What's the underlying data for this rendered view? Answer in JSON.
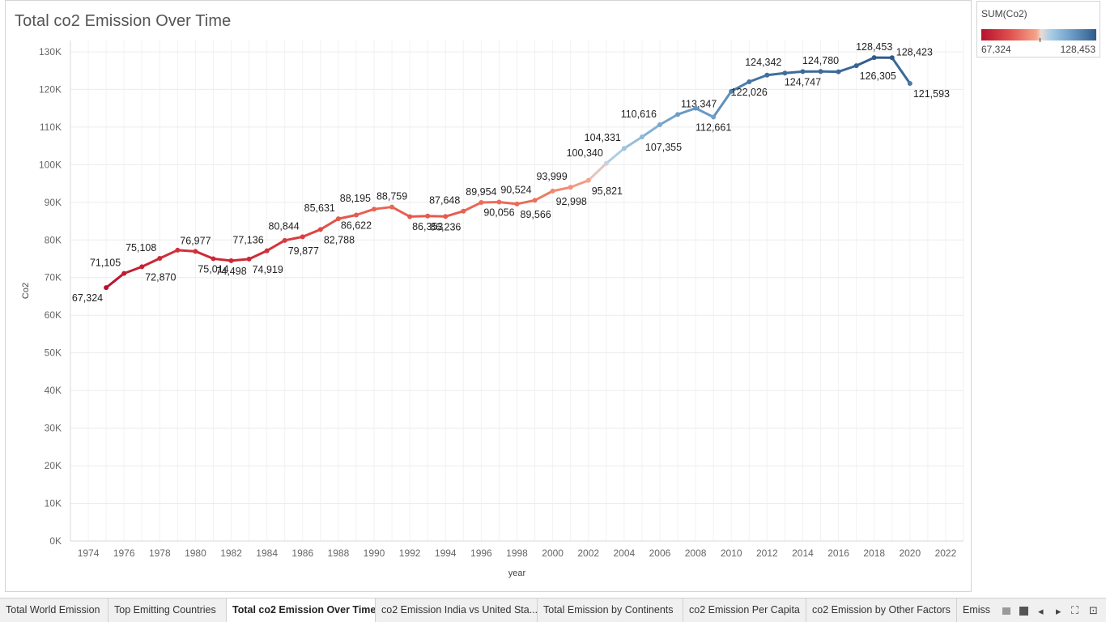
{
  "chart_data": {
    "type": "line",
    "title": "Total co2 Emission Over Time",
    "xlabel": "year",
    "ylabel": "Co2",
    "xlim": [
      1973,
      2023
    ],
    "ylim": [
      0,
      133000
    ],
    "x_ticks": [
      1974,
      1976,
      1978,
      1980,
      1982,
      1984,
      1986,
      1988,
      1990,
      1992,
      1994,
      1996,
      1998,
      2000,
      2002,
      2004,
      2006,
      2008,
      2010,
      2012,
      2014,
      2016,
      2018,
      2020,
      2022
    ],
    "y_ticks": [
      {
        "value": 0,
        "label": "0K"
      },
      {
        "value": 10000,
        "label": "10K"
      },
      {
        "value": 20000,
        "label": "20K"
      },
      {
        "value": 30000,
        "label": "30K"
      },
      {
        "value": 40000,
        "label": "40K"
      },
      {
        "value": 50000,
        "label": "50K"
      },
      {
        "value": 60000,
        "label": "60K"
      },
      {
        "value": 70000,
        "label": "70K"
      },
      {
        "value": 80000,
        "label": "80K"
      },
      {
        "value": 90000,
        "label": "90K"
      },
      {
        "value": 100000,
        "label": "100K"
      },
      {
        "value": 110000,
        "label": "110K"
      },
      {
        "value": 120000,
        "label": "120K"
      },
      {
        "value": 130000,
        "label": "130K"
      }
    ],
    "grid": true,
    "color_scale": {
      "min_color": "#b6102e",
      "mid_color": "#e9dcd6",
      "max_color": "#2f5a8a"
    },
    "points": [
      {
        "x": 1975,
        "y": 67324,
        "label": "67,324",
        "pos": "below-left"
      },
      {
        "x": 1976,
        "y": 71105,
        "label": "71,105",
        "pos": "above-left"
      },
      {
        "x": 1977,
        "y": 72870,
        "label": "72,870",
        "pos": "below-right"
      },
      {
        "x": 1978,
        "y": 75108,
        "label": "75,108",
        "pos": "above-left"
      },
      {
        "x": 1979,
        "y": 77300,
        "label": "",
        "pos": "none"
      },
      {
        "x": 1980,
        "y": 76977,
        "label": "76,977",
        "pos": "above"
      },
      {
        "x": 1981,
        "y": 75014,
        "label": "75,014",
        "pos": "below"
      },
      {
        "x": 1982,
        "y": 74498,
        "label": "74,498",
        "pos": "below"
      },
      {
        "x": 1983,
        "y": 74919,
        "label": "74,919",
        "pos": "below-right"
      },
      {
        "x": 1984,
        "y": 77136,
        "label": "77,136",
        "pos": "above-left"
      },
      {
        "x": 1985,
        "y": 79877,
        "label": "79,877",
        "pos": "below-right"
      },
      {
        "x": 1986,
        "y": 80844,
        "label": "80,844",
        "pos": "above-left"
      },
      {
        "x": 1987,
        "y": 82788,
        "label": "82,788",
        "pos": "below-right"
      },
      {
        "x": 1988,
        "y": 85631,
        "label": "85,631",
        "pos": "above-left"
      },
      {
        "x": 1989,
        "y": 86622,
        "label": "86,622",
        "pos": "below"
      },
      {
        "x": 1990,
        "y": 88195,
        "label": "88,195",
        "pos": "above-left"
      },
      {
        "x": 1991,
        "y": 88759,
        "label": "88,759",
        "pos": "above"
      },
      {
        "x": 1992,
        "y": 86200,
        "label": "",
        "pos": "none"
      },
      {
        "x": 1993,
        "y": 86353,
        "label": "86,353",
        "pos": "below"
      },
      {
        "x": 1994,
        "y": 86236,
        "label": "86,236",
        "pos": "below"
      },
      {
        "x": 1995,
        "y": 87648,
        "label": "87,648",
        "pos": "above-left"
      },
      {
        "x": 1996,
        "y": 89954,
        "label": "89,954",
        "pos": "above"
      },
      {
        "x": 1997,
        "y": 90056,
        "label": "90,056",
        "pos": "below"
      },
      {
        "x": 1998,
        "y": 89566,
        "label": "89,566",
        "pos": "below-right"
      },
      {
        "x": 1999,
        "y": 90524,
        "label": "90,524",
        "pos": "above-left"
      },
      {
        "x": 2000,
        "y": 92998,
        "label": "92,998",
        "pos": "below-right"
      },
      {
        "x": 2001,
        "y": 93999,
        "label": "93,999",
        "pos": "above-left"
      },
      {
        "x": 2002,
        "y": 95821,
        "label": "95,821",
        "pos": "below-right"
      },
      {
        "x": 2003,
        "y": 100340,
        "label": "100,340",
        "pos": "above-left"
      },
      {
        "x": 2004,
        "y": 104331,
        "label": "104,331",
        "pos": "above-left"
      },
      {
        "x": 2005,
        "y": 107355,
        "label": "107,355",
        "pos": "below-right"
      },
      {
        "x": 2006,
        "y": 110616,
        "label": "110,616",
        "pos": "above-left"
      },
      {
        "x": 2007,
        "y": 113347,
        "label": "113,347",
        "pos": "above-right"
      },
      {
        "x": 2008,
        "y": 115000,
        "label": "",
        "pos": "none"
      },
      {
        "x": 2009,
        "y": 112661,
        "label": "112,661",
        "pos": "below"
      },
      {
        "x": 2010,
        "y": 119500,
        "label": "",
        "pos": "none"
      },
      {
        "x": 2011,
        "y": 122026,
        "label": "122,026",
        "pos": "below"
      },
      {
        "x": 2012,
        "y": 123800,
        "label": "",
        "pos": "none"
      },
      {
        "x": 2013,
        "y": 124342,
        "label": "124,342",
        "pos": "above-left"
      },
      {
        "x": 2014,
        "y": 124747,
        "label": "124,747",
        "pos": "below"
      },
      {
        "x": 2015,
        "y": 124780,
        "label": "124,780",
        "pos": "above"
      },
      {
        "x": 2016,
        "y": 124700,
        "label": "",
        "pos": "none"
      },
      {
        "x": 2017,
        "y": 126305,
        "label": "126,305",
        "pos": "below-right"
      },
      {
        "x": 2018,
        "y": 128453,
        "label": "128,453",
        "pos": "above"
      },
      {
        "x": 2019,
        "y": 128423,
        "label": "128,423",
        "pos": "right"
      },
      {
        "x": 2020,
        "y": 121593,
        "label": "121,593",
        "pos": "below-right"
      }
    ]
  },
  "legend": {
    "title": "SUM(Co2)",
    "min_label": "67,324",
    "max_label": "128,453"
  },
  "tabs": [
    {
      "label": "Total World Emission",
      "active": false
    },
    {
      "label": "Top Emitting Countries",
      "active": false
    },
    {
      "label": "Total co2 Emission Over Time",
      "active": true
    },
    {
      "label": "co2 Emission India vs United Sta...",
      "active": false
    },
    {
      "label": "Total Emission by Continents",
      "active": false
    },
    {
      "label": "co2 Emission Per Capita",
      "active": false
    },
    {
      "label": "co2 Emission by Other Factors",
      "active": false
    },
    {
      "label": "Emiss",
      "active": false
    }
  ],
  "tab_nav": {
    "prev_glyph": "◂",
    "next_glyph": "▸",
    "fullscreen_glyph": "⛶",
    "present_glyph": "⊡"
  }
}
